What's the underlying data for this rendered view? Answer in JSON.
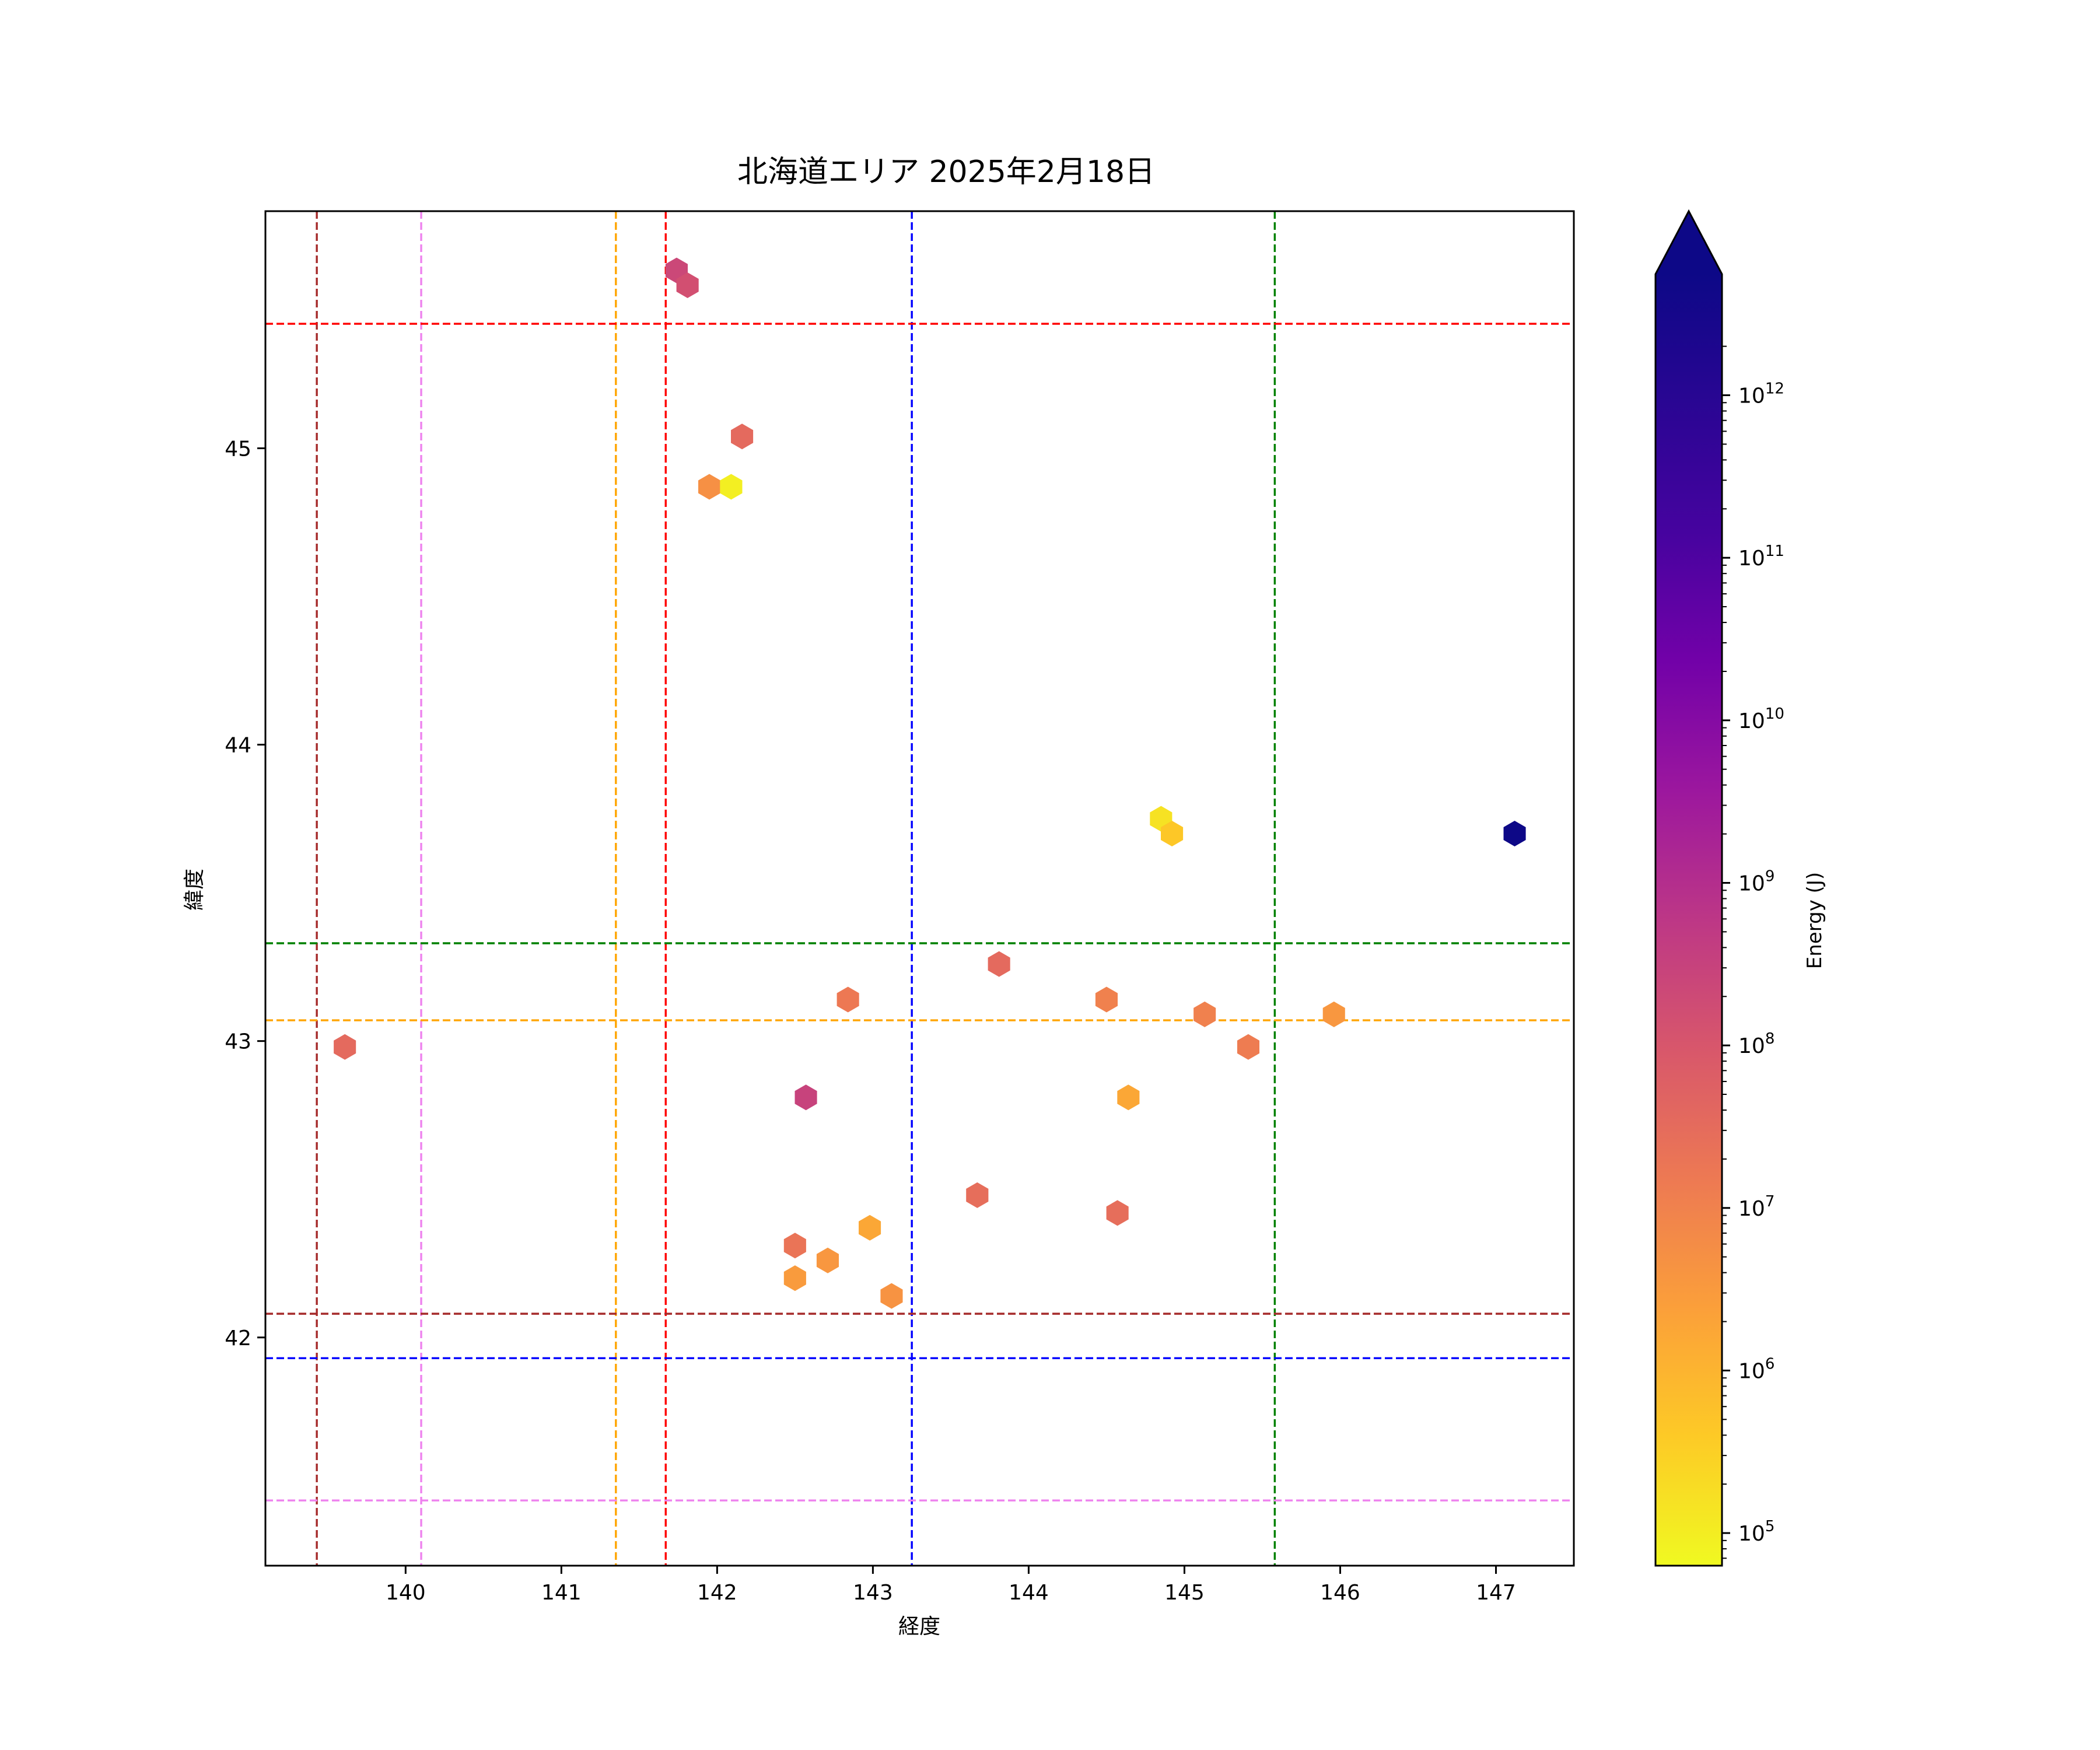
{
  "chart_data": {
    "type": "scatter",
    "marker": "hexagon",
    "title": "北海道エリア 2025年2月18日",
    "xlabel": "経度",
    "ylabel": "緯度",
    "xlim": [
      139.1,
      147.5
    ],
    "ylim": [
      41.23,
      45.8
    ],
    "xticks": [
      140,
      141,
      142,
      143,
      144,
      145,
      146,
      147
    ],
    "yticks": [
      42,
      43,
      44,
      45
    ],
    "grid": false,
    "colorbar": {
      "label": "Energy (J)",
      "scale": "log",
      "colormap": "plasma_r",
      "range": [
        63000,
        30000000000000
      ],
      "extend": "max",
      "ticks": [
        {
          "value": 100000,
          "base": "10",
          "exp": "5"
        },
        {
          "value": 1000000,
          "base": "10",
          "exp": "6"
        },
        {
          "value": 10000000,
          "base": "10",
          "exp": "7"
        },
        {
          "value": 100000000,
          "base": "10",
          "exp": "8"
        },
        {
          "value": 1000000000,
          "base": "10",
          "exp": "9"
        },
        {
          "value": 10000000000,
          "base": "10",
          "exp": "10"
        },
        {
          "value": 100000000000,
          "base": "10",
          "exp": "11"
        },
        {
          "value": 1000000000000,
          "base": "10",
          "exp": "12"
        }
      ]
    },
    "reference_lines": [
      {
        "axis": "x",
        "value": 139.43,
        "color": "#a52a2a"
      },
      {
        "axis": "x",
        "value": 140.1,
        "color": "#ee82ee"
      },
      {
        "axis": "x",
        "value": 141.35,
        "color": "#ffa500"
      },
      {
        "axis": "x",
        "value": 141.67,
        "color": "#ff0000"
      },
      {
        "axis": "x",
        "value": 143.25,
        "color": "#0000ff"
      },
      {
        "axis": "x",
        "value": 145.58,
        "color": "#008000"
      },
      {
        "axis": "y",
        "value": 45.42,
        "color": "#ff0000"
      },
      {
        "axis": "y",
        "value": 43.33,
        "color": "#008000"
      },
      {
        "axis": "y",
        "value": 43.07,
        "color": "#ffa500"
      },
      {
        "axis": "y",
        "value": 42.08,
        "color": "#a52a2a"
      },
      {
        "axis": "y",
        "value": 41.93,
        "color": "#0000ff"
      },
      {
        "axis": "y",
        "value": 41.45,
        "color": "#ee82ee"
      }
    ],
    "points": [
      {
        "lon": 141.74,
        "lat": 45.6,
        "energy": 150000000
      },
      {
        "lon": 141.81,
        "lat": 45.55,
        "energy": 100000000
      },
      {
        "lon": 142.16,
        "lat": 45.04,
        "energy": 25000000
      },
      {
        "lon": 141.95,
        "lat": 44.87,
        "energy": 4000000
      },
      {
        "lon": 142.09,
        "lat": 44.87,
        "energy": 90000
      },
      {
        "lon": 144.85,
        "lat": 43.75,
        "energy": 150000
      },
      {
        "lon": 144.92,
        "lat": 43.7,
        "energy": 400000
      },
      {
        "lon": 147.12,
        "lat": 43.7,
        "energy": 3000000000000
      },
      {
        "lon": 143.81,
        "lat": 43.26,
        "energy": 25000000
      },
      {
        "lon": 142.84,
        "lat": 43.14,
        "energy": 12000000
      },
      {
        "lon": 144.5,
        "lat": 43.14,
        "energy": 8000000
      },
      {
        "lon": 145.13,
        "lat": 43.09,
        "energy": 8000000
      },
      {
        "lon": 145.96,
        "lat": 43.09,
        "energy": 3000000
      },
      {
        "lon": 139.61,
        "lat": 42.98,
        "energy": 25000000
      },
      {
        "lon": 145.41,
        "lat": 42.98,
        "energy": 10000000
      },
      {
        "lon": 142.57,
        "lat": 42.81,
        "energy": 200000000
      },
      {
        "lon": 144.64,
        "lat": 42.81,
        "energy": 1500000
      },
      {
        "lon": 143.67,
        "lat": 42.48,
        "energy": 20000000
      },
      {
        "lon": 144.57,
        "lat": 42.42,
        "energy": 20000000
      },
      {
        "lon": 142.98,
        "lat": 42.37,
        "energy": 1500000
      },
      {
        "lon": 142.5,
        "lat": 42.31,
        "energy": 15000000
      },
      {
        "lon": 142.71,
        "lat": 42.26,
        "energy": 3000000
      },
      {
        "lon": 142.5,
        "lat": 42.2,
        "energy": 2500000
      },
      {
        "lon": 143.12,
        "lat": 42.14,
        "energy": 3500000
      }
    ]
  }
}
